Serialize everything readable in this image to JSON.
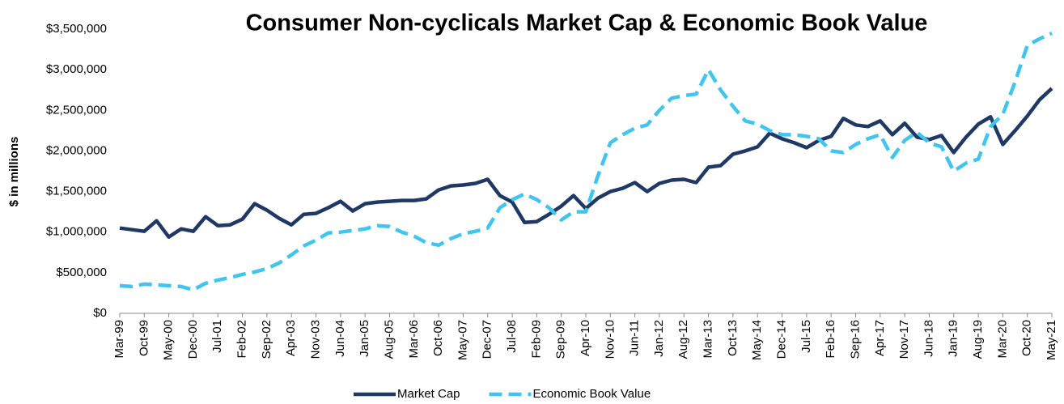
{
  "chart_data": {
    "type": "line",
    "title": "Consumer Non-cyclicals Market Cap & Economic Book Value",
    "y_label": "$ in millions",
    "categories": [
      "Mar-99",
      null,
      "Oct-99",
      null,
      "May-00",
      null,
      "Dec-00",
      null,
      "Jul-01",
      null,
      "Feb-02",
      null,
      "Sep-02",
      null,
      "Apr-03",
      null,
      "Nov-03",
      null,
      "Jun-04",
      null,
      "Jan-05",
      null,
      "Aug-05",
      null,
      "Mar-06",
      null,
      "Oct-06",
      null,
      "May-07",
      null,
      "Dec-07",
      null,
      "Jul-08",
      null,
      "Feb-09",
      null,
      "Sep-09",
      null,
      "Apr-10",
      null,
      "Nov-10",
      null,
      "Jun-11",
      null,
      "Jan-12",
      null,
      "Aug-12",
      null,
      "Mar-13",
      null,
      "Oct-13",
      null,
      "May-14",
      null,
      "Dec-14",
      null,
      "Jul-15",
      null,
      "Feb-16",
      null,
      "Sep-16",
      null,
      "Apr-17",
      null,
      "Nov-17",
      null,
      "Jun-18",
      null,
      "Jan-19",
      null,
      "Aug-19",
      null,
      "Mar-20",
      null,
      "Oct-20",
      null,
      "May-21"
    ],
    "series": [
      {
        "name": "Market Cap",
        "color": "#1f3864",
        "dash": false,
        "values": [
          1050000,
          1030000,
          1010000,
          1140000,
          940000,
          1040000,
          1010000,
          1190000,
          1080000,
          1090000,
          1160000,
          1350000,
          1270000,
          1170000,
          1090000,
          1220000,
          1230000,
          1300000,
          1380000,
          1260000,
          1350000,
          1370000,
          1380000,
          1390000,
          1390000,
          1410000,
          1520000,
          1570000,
          1580000,
          1600000,
          1650000,
          1450000,
          1370000,
          1120000,
          1130000,
          1220000,
          1320000,
          1450000,
          1290000,
          1420000,
          1500000,
          1540000,
          1610000,
          1500000,
          1600000,
          1640000,
          1650000,
          1610000,
          1800000,
          1820000,
          1960000,
          2000000,
          2050000,
          2220000,
          2150000,
          2100000,
          2040000,
          2130000,
          2180000,
          2400000,
          2320000,
          2300000,
          2370000,
          2200000,
          2340000,
          2170000,
          2140000,
          2190000,
          1980000,
          2170000,
          2330000,
          2420000,
          2080000,
          2250000,
          2430000,
          2630000,
          2770000
        ]
      },
      {
        "name": "Economic Book Value",
        "color": "#41c4ef",
        "dash": true,
        "values": [
          340000,
          330000,
          360000,
          350000,
          340000,
          330000,
          290000,
          370000,
          410000,
          440000,
          480000,
          510000,
          550000,
          620000,
          720000,
          830000,
          900000,
          990000,
          1000000,
          1020000,
          1040000,
          1080000,
          1070000,
          1000000,
          950000,
          870000,
          840000,
          920000,
          980000,
          1010000,
          1050000,
          1300000,
          1400000,
          1470000,
          1400000,
          1300000,
          1150000,
          1250000,
          1250000,
          1700000,
          2100000,
          2200000,
          2280000,
          2320000,
          2500000,
          2650000,
          2680000,
          2700000,
          3000000,
          2750000,
          2550000,
          2370000,
          2330000,
          2250000,
          2200000,
          2200000,
          2180000,
          2150000,
          2000000,
          1980000,
          2080000,
          2150000,
          2200000,
          1920000,
          2130000,
          2230000,
          2100000,
          2050000,
          1750000,
          1850000,
          1900000,
          2300000,
          2450000,
          2850000,
          3300000,
          3380000,
          3450000
        ]
      }
    ],
    "ylim": [
      0,
      3500000
    ],
    "yticks": [
      {
        "value": 0,
        "label": "$0"
      },
      {
        "value": 500000,
        "label": "$500,000"
      },
      {
        "value": 1000000,
        "label": "$1,000,000"
      },
      {
        "value": 1500000,
        "label": "$1,500,000"
      },
      {
        "value": 2000000,
        "label": "$2,000,000"
      },
      {
        "value": 2500000,
        "label": "$2,500,000"
      },
      {
        "value": 3000000,
        "label": "$3,000,000"
      },
      {
        "value": 3500000,
        "label": "$3,500,000"
      }
    ],
    "grid": false,
    "legend": "bottom"
  }
}
